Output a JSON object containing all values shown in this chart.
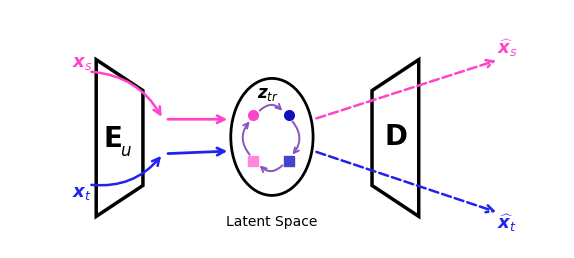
{
  "fig_width": 5.74,
  "fig_height": 2.58,
  "dpi": 100,
  "bg_color": "#ffffff",
  "magenta": "#FF44CC",
  "blue": "#2222EE",
  "purple": "#8855BB",
  "bottom_label": "Latent Space"
}
